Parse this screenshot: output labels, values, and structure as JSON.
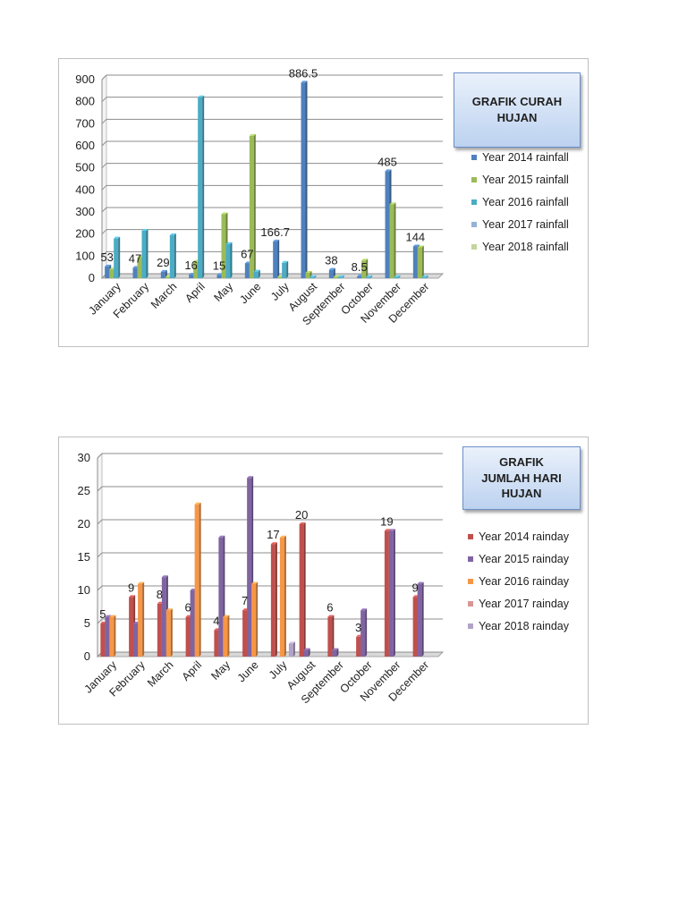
{
  "chart_data": [
    {
      "type": "bar",
      "title": "GRAFIK CURAH HUJAN",
      "categories": [
        "January",
        "February",
        "March",
        "April",
        "May",
        "June",
        "July",
        "August",
        "September",
        "October",
        "November",
        "December"
      ],
      "ylim": [
        0,
        900
      ],
      "yticks": [
        0,
        100,
        200,
        300,
        400,
        500,
        600,
        700,
        800,
        900
      ],
      "grid": true,
      "legend_position": "right",
      "series": [
        {
          "name": "Year 2014 rainfall",
          "color": "#4f81bd",
          "values": [
            53,
            47,
            29,
            16,
            15,
            67,
            166.7,
            886.5,
            38,
            8.5,
            485,
            144
          ]
        },
        {
          "name": "Year 2015 rainfall",
          "color": "#9bbb59",
          "values": [
            40,
            95,
            5,
            75,
            290,
            645,
            5,
            25,
            5,
            80,
            335,
            140
          ]
        },
        {
          "name": "Year 2016 rainfall",
          "color": "#4bacc6",
          "values": [
            180,
            215,
            195,
            820,
            155,
            30,
            70,
            5,
            5,
            5,
            5,
            5
          ]
        },
        {
          "name": "Year 2017 rainfall",
          "color": "#95b3d7",
          "values": [
            0,
            0,
            0,
            0,
            0,
            0,
            0,
            0,
            0,
            0,
            0,
            0
          ]
        },
        {
          "name": "Year 2018 rainfall",
          "color": "#c3d69b",
          "values": [
            0,
            0,
            0,
            0,
            0,
            0,
            0,
            0,
            0,
            0,
            0,
            0
          ]
        }
      ],
      "data_labels": [
        "53",
        "47",
        "29",
        "16",
        "15",
        "67",
        "166.7",
        "886.5",
        "38",
        "8.5",
        "485",
        "144"
      ]
    },
    {
      "type": "bar",
      "title": "GRAFIK JUMLAH HARI HUJAN",
      "categories": [
        "January",
        "February",
        "March",
        "April",
        "May",
        "June",
        "July",
        "August",
        "September",
        "October",
        "November",
        "December"
      ],
      "ylim": [
        0,
        30
      ],
      "yticks": [
        0,
        5,
        10,
        15,
        20,
        25,
        30
      ],
      "grid": true,
      "legend_position": "right",
      "series": [
        {
          "name": "Year 2014 rainday",
          "color": "#c0504d",
          "values": [
            5,
            9,
            8,
            6,
            4,
            7,
            17,
            20,
            6,
            3,
            19,
            9
          ]
        },
        {
          "name": "Year 2015 rainday",
          "color": "#8064a2",
          "values": [
            6,
            5,
            12,
            10,
            18,
            27,
            0,
            1,
            1,
            7,
            19,
            11
          ]
        },
        {
          "name": "Year 2016 rainday",
          "color": "#f79646",
          "values": [
            6,
            11,
            7,
            23,
            6,
            11,
            18,
            0,
            0,
            0,
            0,
            0
          ]
        },
        {
          "name": "Year 2017 rainday",
          "color": "#d99694",
          "values": [
            0,
            0,
            0,
            0,
            0,
            0,
            0,
            0,
            0,
            0,
            0,
            0
          ]
        },
        {
          "name": "Year 2018 rainday",
          "color": "#b3a2c7",
          "values": [
            0,
            0,
            0,
            0,
            0,
            0,
            2,
            0,
            0,
            0,
            0,
            0
          ]
        }
      ],
      "data_labels": [
        "5",
        "9",
        "8",
        "6",
        "4",
        "7",
        "17",
        "20",
        "6",
        "3",
        "19",
        "9"
      ]
    }
  ]
}
